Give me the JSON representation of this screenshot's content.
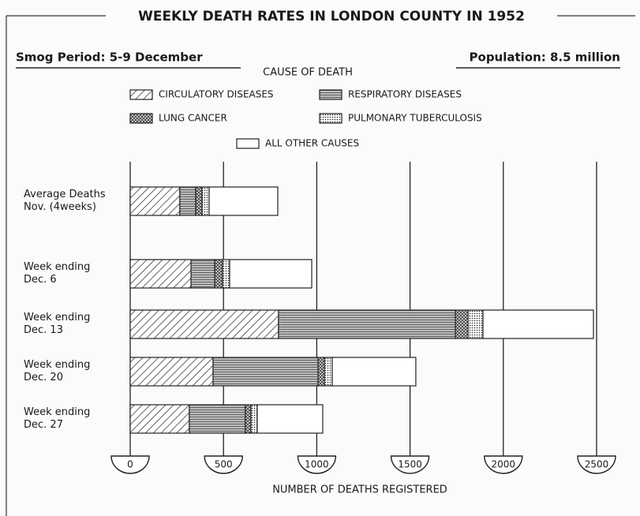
{
  "chart_data": {
    "type": "stacked_barh",
    "title": "WEEKLY DEATH RATES IN LONDON COUNTY IN 1952",
    "subtitle": "Smog Period: 5-9 December",
    "annotation": "Population: 8.5 million",
    "legend_title": "CAUSE OF DEATH",
    "xlabel": "NUMBER OF DEATHS REGISTERED",
    "categories": [
      "Average Deaths\nNov. (4weeks)",
      "Week ending\nDec. 6",
      "Week ending\nDec. 13",
      "Week ending\nDec. 20",
      "Week ending\nDec. 27"
    ],
    "series": [
      {
        "name": "CIRCULATORY DISEASES",
        "color": "#222222",
        "pattern": "diagonal",
        "values": [
          266,
          326,
          795,
          444,
          317
        ]
      },
      {
        "name": "RESPIRATORY DISEASES",
        "color": "#222222",
        "pattern": "horizontal",
        "values": [
          85,
          127,
          948,
          563,
          300
        ]
      },
      {
        "name": "LUNG CANCER",
        "color": "#222222",
        "pattern": "crosshatch",
        "values": [
          34,
          42,
          68,
          34,
          30
        ]
      },
      {
        "name": "PULMONARY TUBERCULOSIS",
        "color": "#222222",
        "pattern": "dots",
        "values": [
          38,
          38,
          80,
          42,
          34
        ]
      },
      {
        "name": "ALL OTHER CAUSES",
        "color": "#222222",
        "pattern": "none",
        "values": [
          368,
          440,
          592,
          448,
          351
        ]
      }
    ],
    "xlim": [
      0,
      2500
    ],
    "xticks": [
      0,
      500,
      1000,
      1500,
      2000,
      2500
    ],
    "grid": true
  }
}
